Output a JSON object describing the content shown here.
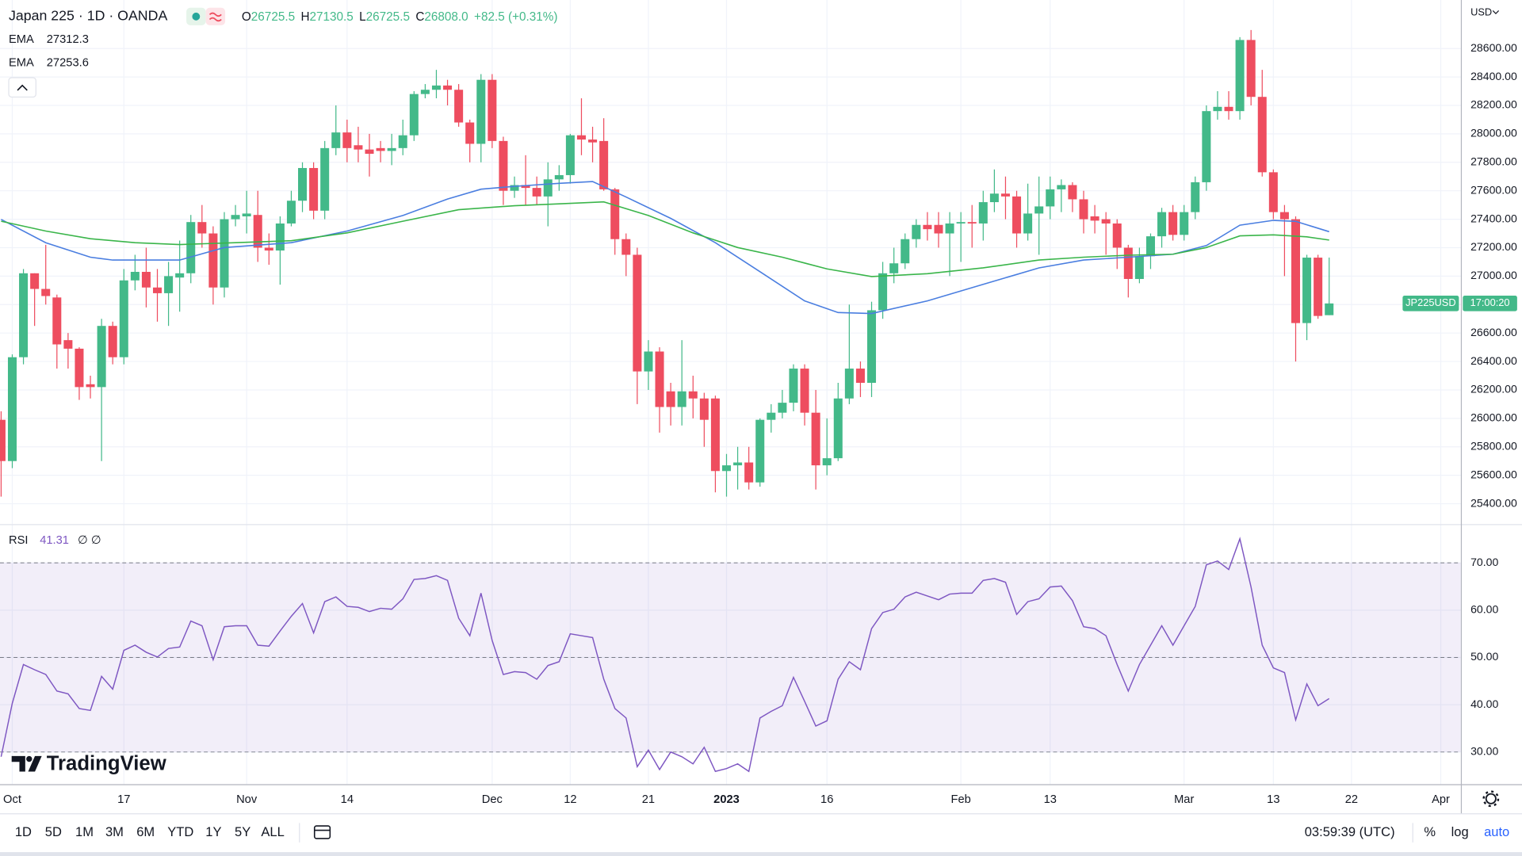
{
  "header": {
    "symbol": "Japan 225 · 1D · OANDA",
    "ohlc": [
      {
        "label": "O",
        "value": "26725.5"
      },
      {
        "label": "H",
        "value": "27130.5"
      },
      {
        "label": "L",
        "value": "26725.5"
      },
      {
        "label": "C",
        "value": "26808.0"
      }
    ],
    "change": "+82.5 (+0.31%)"
  },
  "chart_data": [
    {
      "type": "candlestick",
      "currency": "USD",
      "up_color": "#43b989",
      "down_color": "#ee4d5f",
      "open": [
        25990,
        25700,
        26430,
        27020,
        26910,
        26850,
        26550,
        26490,
        26240,
        26220,
        26650,
        26430,
        26970,
        27030,
        26920,
        26880,
        26990,
        27020,
        27380,
        27300,
        26920,
        27400,
        27420,
        27430,
        27200,
        27180,
        27370,
        27530,
        27760,
        27460,
        27900,
        28010,
        27920,
        27890,
        27900,
        27880,
        27900,
        27990,
        28280,
        28310,
        28340,
        28310,
        28080,
        27930,
        28380,
        27950,
        27600,
        27640,
        27620,
        27560,
        27680,
        27710,
        27990,
        27960,
        27950,
        27610,
        27260,
        27150,
        26330,
        26470,
        26190,
        26080,
        26190,
        26140,
        26140,
        25630,
        25670,
        25690,
        25550,
        25990,
        26040,
        26110,
        26350,
        26040,
        25670,
        25720,
        26140,
        26350,
        26250,
        26760,
        27020,
        27090,
        27260,
        27360,
        27360,
        27300,
        27370,
        27380,
        27370,
        27520,
        27580,
        27560,
        27300,
        27440,
        27490,
        27610,
        27640,
        27540,
        27420,
        27400,
        27370,
        27200,
        26980,
        27140,
        27280,
        27450,
        27290,
        27450,
        27660,
        28160,
        28190,
        28160,
        28660,
        28260,
        27730,
        27450,
        27400,
        26670,
        27130,
        26725.5
      ],
      "high": [
        26050,
        26450,
        27050,
        27020,
        27220,
        26870,
        26600,
        26500,
        26300,
        26700,
        26680,
        27050,
        27150,
        27200,
        27050,
        27100,
        27250,
        27430,
        27500,
        27350,
        27450,
        27500,
        27600,
        27600,
        27300,
        27420,
        27600,
        27800,
        27800,
        27950,
        28200,
        28100,
        28050,
        28000,
        27950,
        28000,
        28100,
        28300,
        28350,
        28450,
        28380,
        28350,
        28100,
        28420,
        28420,
        27980,
        27700,
        27850,
        27700,
        27800,
        27780,
        28000,
        28250,
        28050,
        28110,
        27620,
        27300,
        27200,
        26550,
        26500,
        26250,
        26550,
        26300,
        26180,
        26160,
        25750,
        25800,
        25800,
        26000,
        26100,
        26200,
        26380,
        26380,
        26200,
        26000,
        26250,
        26800,
        26400,
        26820,
        27100,
        27200,
        27300,
        27400,
        27450,
        27450,
        27450,
        27450,
        27500,
        27600,
        27750,
        27700,
        27600,
        27650,
        27700,
        27700,
        27680,
        27660,
        27600,
        27500,
        27450,
        27400,
        27220,
        27200,
        27300,
        27480,
        27500,
        27500,
        27700,
        28200,
        28300,
        28300,
        28680,
        28730,
        28450,
        27750,
        27500,
        27420,
        27150,
        27150,
        27130.5
      ],
      "low": [
        25450,
        25650,
        26380,
        26650,
        26800,
        26350,
        26350,
        26130,
        26140,
        25700,
        26380,
        26380,
        26900,
        26780,
        26680,
        26650,
        26750,
        26950,
        27200,
        26800,
        26850,
        27350,
        27300,
        27100,
        27080,
        26940,
        27350,
        27450,
        27400,
        27400,
        27850,
        27800,
        27800,
        27700,
        27800,
        27780,
        27850,
        27950,
        28250,
        28250,
        28200,
        28050,
        27800,
        27800,
        27900,
        27500,
        27550,
        27500,
        27500,
        27350,
        27600,
        27650,
        27850,
        27800,
        27600,
        27150,
        27000,
        26100,
        26200,
        25900,
        25950,
        25950,
        26000,
        25800,
        25480,
        25450,
        25500,
        25500,
        25520,
        25900,
        26000,
        26050,
        25950,
        25500,
        25600,
        25700,
        26100,
        26150,
        26150,
        26700,
        26950,
        27050,
        27200,
        27250,
        27200,
        27000,
        27100,
        27200,
        27250,
        27450,
        27400,
        27200,
        27250,
        27150,
        27400,
        27450,
        27450,
        27300,
        27300,
        27150,
        27050,
        26850,
        26950,
        27050,
        27200,
        27250,
        27250,
        27400,
        27600,
        28100,
        28100,
        28100,
        28200,
        27700,
        27400,
        27000,
        26400,
        26550,
        26700,
        26725.5
      ],
      "close": [
        25700,
        26430,
        27020,
        26910,
        26860,
        26520,
        26490,
        26220,
        26220,
        26650,
        26430,
        26970,
        27030,
        26920,
        26880,
        27000,
        27020,
        27380,
        27300,
        26920,
        27400,
        27430,
        27440,
        27200,
        27180,
        27370,
        27530,
        27760,
        27460,
        27900,
        28010,
        27900,
        27890,
        27860,
        27880,
        27900,
        27990,
        28280,
        28310,
        28340,
        28310,
        28080,
        27930,
        28380,
        27950,
        27600,
        27640,
        27620,
        27560,
        27680,
        27710,
        27990,
        27960,
        27940,
        27610,
        27260,
        27150,
        26330,
        26470,
        26080,
        26080,
        26190,
        26140,
        25990,
        25630,
        25670,
        25690,
        25550,
        25990,
        26040,
        26110,
        26350,
        26040,
        25670,
        25720,
        26140,
        26350,
        26250,
        26760,
        27020,
        27090,
        27260,
        27360,
        27330,
        27300,
        27370,
        27380,
        27370,
        27520,
        27580,
        27560,
        27300,
        27440,
        27490,
        27610,
        27640,
        27540,
        27400,
        27390,
        27370,
        27200,
        26980,
        27140,
        27280,
        27450,
        27290,
        27450,
        27660,
        28160,
        28190,
        28160,
        28660,
        28260,
        27730,
        27450,
        27400,
        26670,
        27130,
        26720,
        26808
      ],
      "series": [
        {
          "name": "EMA",
          "legend_value": "27312.3",
          "color": "#4a7ee0",
          "x": [
            0,
            4,
            8,
            10,
            16,
            20,
            26,
            31,
            36,
            40,
            43,
            46,
            50,
            53,
            56,
            60,
            64,
            68,
            72,
            75,
            78,
            83,
            88,
            93,
            97,
            101,
            105,
            108,
            111,
            114,
            116,
            119
          ],
          "values": [
            27399,
            27235,
            27133,
            27113,
            27113,
            27201,
            27235,
            27317,
            27426,
            27542,
            27611,
            27631,
            27652,
            27665,
            27556,
            27406,
            27235,
            27031,
            26826,
            26744,
            26737,
            26826,
            26942,
            27058,
            27113,
            27133,
            27154,
            27215,
            27358,
            27392,
            27385,
            27312.3
          ]
        },
        {
          "name": "EMA",
          "legend_value": "27253.6",
          "color": "#3ab54a",
          "x": [
            0,
            4,
            8,
            12,
            16,
            21,
            26,
            31,
            36,
            41,
            46,
            50,
            54,
            58,
            62,
            66,
            70,
            74,
            78,
            83,
            88,
            93,
            97,
            101,
            105,
            108,
            111,
            114,
            117,
            119
          ],
          "values": [
            27386,
            27317,
            27263,
            27235,
            27222,
            27235,
            27249,
            27304,
            27386,
            27467,
            27495,
            27508,
            27522,
            27426,
            27304,
            27201,
            27133,
            27051,
            26997,
            27017,
            27058,
            27113,
            27133,
            27147,
            27154,
            27201,
            27283,
            27290,
            27276,
            27253.6
          ]
        }
      ],
      "xlim": [
        -0.1,
        130.8
      ],
      "xticks": [
        {
          "value": 1,
          "label": "Oct"
        },
        {
          "value": 11,
          "label": "17"
        },
        {
          "value": 22,
          "label": "Nov"
        },
        {
          "value": 31,
          "label": "14"
        },
        {
          "value": 44,
          "label": "Dec"
        },
        {
          "value": 51,
          "label": "12"
        },
        {
          "value": 58,
          "label": "21"
        },
        {
          "value": 65,
          "label": "2023",
          "bold": true
        },
        {
          "value": 74,
          "label": "16"
        },
        {
          "value": 86,
          "label": "Feb"
        },
        {
          "value": 94,
          "label": "13"
        },
        {
          "value": 106,
          "label": "Mar"
        },
        {
          "value": 114,
          "label": "13"
        },
        {
          "value": 121,
          "label": "22"
        },
        {
          "value": 129,
          "label": "Apr"
        }
      ],
      "ylim": [
        25257,
        28941
      ],
      "yticks": [
        {
          "value": 25400,
          "label": "25400.00"
        },
        {
          "value": 25600,
          "label": "25600.00"
        },
        {
          "value": 25800,
          "label": "25800.00"
        },
        {
          "value": 26000,
          "label": "26000.00"
        },
        {
          "value": 26200,
          "label": "26200.00"
        },
        {
          "value": 26400,
          "label": "26400.00"
        },
        {
          "value": 26600,
          "label": "26600.00"
        },
        {
          "value": 26800,
          "label": "26800.00"
        },
        {
          "value": 27000,
          "label": "27000.00"
        },
        {
          "value": 27200,
          "label": "27200.00"
        },
        {
          "value": 27400,
          "label": "27400.00"
        },
        {
          "value": 27600,
          "label": "27600.00"
        },
        {
          "value": 27800,
          "label": "27800.00"
        },
        {
          "value": 28000,
          "label": "28000.00"
        },
        {
          "value": 28200,
          "label": "28200.00"
        },
        {
          "value": 28400,
          "label": "28400.00"
        },
        {
          "value": 28600,
          "label": "28600.00"
        }
      ],
      "grid": true,
      "price_label": {
        "symbol": "JP225USD",
        "countdown": "17:00:20"
      }
    },
    {
      "type": "line",
      "name": "RSI",
      "legend_value": "41.31",
      "legend_extra": "∅ ∅",
      "color": "#7e57c2",
      "values": [
        29.0,
        40.3,
        48.5,
        47.4,
        46.4,
        42.9,
        42.3,
        39.2,
        38.8,
        46.0,
        43.3,
        51.5,
        52.6,
        51.1,
        50.1,
        51.9,
        52.2,
        57.7,
        56.7,
        49.5,
        56.5,
        56.7,
        56.7,
        52.6,
        52.4,
        55.6,
        58.7,
        61.4,
        55.2,
        61.8,
        62.8,
        60.8,
        60.6,
        59.7,
        60.4,
        60.2,
        62.4,
        66.5,
        66.7,
        67.3,
        66.3,
        58.3,
        54.6,
        63.6,
        53.6,
        46.4,
        47.0,
        46.8,
        45.4,
        48.3,
        49.1,
        55.0,
        54.6,
        54.2,
        45.4,
        39.2,
        37.2,
        26.9,
        30.4,
        26.3,
        30.0,
        29.0,
        27.5,
        31.0,
        25.9,
        26.5,
        27.5,
        25.9,
        37.2,
        38.6,
        39.8,
        45.8,
        40.7,
        35.5,
        36.6,
        45.4,
        49.1,
        47.4,
        56.1,
        59.5,
        60.2,
        62.8,
        63.8,
        63.0,
        62.2,
        63.4,
        63.6,
        63.6,
        66.3,
        66.7,
        65.9,
        59.1,
        61.8,
        62.4,
        64.9,
        65.1,
        62.0,
        56.5,
        56.1,
        54.6,
        48.5,
        42.9,
        48.5,
        52.6,
        56.7,
        52.6,
        56.7,
        60.8,
        69.6,
        70.4,
        68.6,
        75.1,
        64.9,
        52.6,
        47.8,
        46.8,
        36.8,
        44.4,
        39.8,
        41.31
      ],
      "ylim": [
        23.2,
        78
      ],
      "yticks": [
        {
          "value": 30,
          "label": "30.00"
        },
        {
          "value": 40,
          "label": "40.00"
        },
        {
          "value": 50,
          "label": "50.00"
        },
        {
          "value": 60,
          "label": "60.00"
        },
        {
          "value": 70,
          "label": "70.00"
        }
      ],
      "levels": [
        30,
        50,
        70
      ],
      "band_color": "rgba(126,87,194,0.10)"
    }
  ],
  "toolbar": {
    "ranges": [
      "1D",
      "5D",
      "1M",
      "3M",
      "6M",
      "YTD",
      "1Y",
      "5Y",
      "ALL"
    ],
    "time": "03:59:39 (UTC)",
    "options": [
      "%",
      "log",
      "auto"
    ]
  },
  "watermark": "TradingView"
}
